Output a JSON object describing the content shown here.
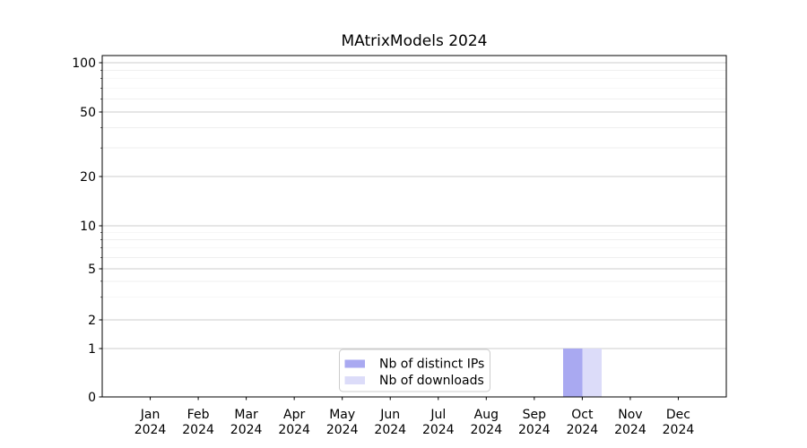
{
  "chart_data": {
    "type": "bar",
    "title": "MAtrixModels 2024",
    "x_axis": {
      "year": "2024",
      "months": [
        "Jan",
        "Feb",
        "Mar",
        "Apr",
        "May",
        "Jun",
        "Jul",
        "Aug",
        "Sep",
        "Oct",
        "Nov",
        "Dec"
      ]
    },
    "categories": [
      "Jan 2024",
      "Feb 2024",
      "Mar 2024",
      "Apr 2024",
      "May 2024",
      "Jun 2024",
      "Jul 2024",
      "Aug 2024",
      "Sep 2024",
      "Oct 2024",
      "Nov 2024",
      "Dec 2024"
    ],
    "series": [
      {
        "name": "Nb of distinct IPs",
        "color": "#a9a9f1",
        "values": [
          0,
          0,
          0,
          0,
          0,
          0,
          0,
          0,
          0,
          1,
          0,
          0
        ]
      },
      {
        "name": "Nb of downloads",
        "color": "#dcdcf9",
        "values": [
          0,
          0,
          0,
          0,
          0,
          0,
          0,
          0,
          0,
          1,
          0,
          0
        ]
      }
    ],
    "y_axis": {
      "scale": "symlog",
      "major_ticks": [
        0,
        1,
        2,
        5,
        10,
        20,
        50,
        100
      ],
      "minor_ticks": [
        3,
        4,
        6,
        7,
        8,
        9,
        30,
        40,
        60,
        70,
        80,
        90
      ],
      "range": [
        0,
        110
      ]
    },
    "legend": {
      "position": "lower center",
      "entries": [
        "Nb of distinct IPs",
        "Nb of downloads"
      ]
    },
    "grid": {
      "axis": "y",
      "major_color": "#cccccc",
      "minor_color": "#efefef"
    },
    "colors": {
      "spine": "#000000",
      "text": "#000000",
      "legend_border": "#cccccc",
      "legend_background": "#ffffff"
    }
  }
}
